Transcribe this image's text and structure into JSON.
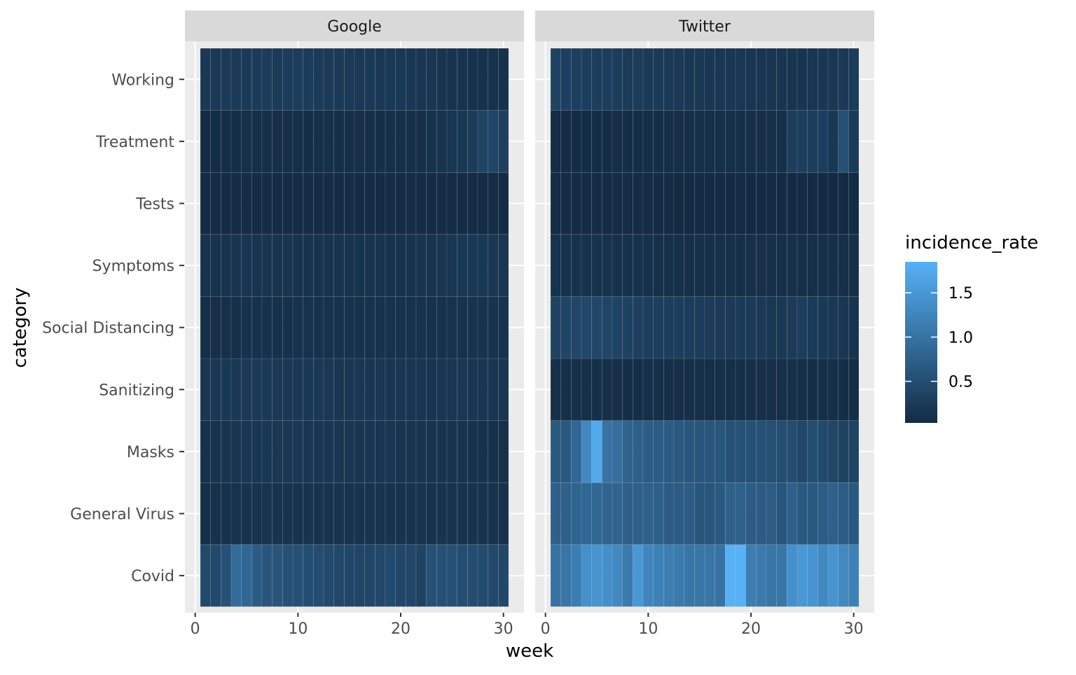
{
  "chart_data": {
    "type": "heatmap",
    "xlabel": "week",
    "ylabel": "category",
    "xlim": [
      0,
      31
    ],
    "x_ticks": [
      0,
      10,
      20,
      30
    ],
    "x_tick_labels": [
      "0",
      "10",
      "20",
      "30"
    ],
    "weeks": [
      1,
      2,
      3,
      4,
      5,
      6,
      7,
      8,
      9,
      10,
      11,
      12,
      13,
      14,
      15,
      16,
      17,
      18,
      19,
      20,
      21,
      22,
      23,
      24,
      25,
      26,
      27,
      28,
      29,
      30
    ],
    "categories": [
      "Covid",
      "General Virus",
      "Masks",
      "Sanitizing",
      "Social Distancing",
      "Symptoms",
      "Tests",
      "Treatment",
      "Working"
    ],
    "legend": {
      "title": "incidence_rate",
      "position": "right",
      "min": 0.03,
      "max": 1.85,
      "breaks": [
        0.5,
        1.0,
        1.5
      ],
      "break_labels": [
        "0.5",
        "1.0",
        "1.5"
      ],
      "color_low": "#132B43",
      "color_high": "#56B1F7"
    },
    "panels": [
      {
        "name": "Google",
        "values": {
          "Covid": [
            0.45,
            0.45,
            0.55,
            0.9,
            0.85,
            0.7,
            0.6,
            0.6,
            0.55,
            0.55,
            0.5,
            0.48,
            0.45,
            0.42,
            0.4,
            0.38,
            0.4,
            0.42,
            0.45,
            0.4,
            0.4,
            0.35,
            0.55,
            0.55,
            0.55,
            0.5,
            0.48,
            0.46,
            0.44,
            0.42
          ],
          "General Virus": [
            0.1,
            0.11,
            0.12,
            0.13,
            0.14,
            0.14,
            0.15,
            0.15,
            0.15,
            0.15,
            0.15,
            0.15,
            0.15,
            0.15,
            0.15,
            0.15,
            0.15,
            0.15,
            0.15,
            0.15,
            0.15,
            0.15,
            0.15,
            0.15,
            0.15,
            0.15,
            0.15,
            0.14,
            0.13,
            0.12
          ],
          "Masks": [
            0.12,
            0.14,
            0.16,
            0.17,
            0.18,
            0.19,
            0.2,
            0.2,
            0.2,
            0.2,
            0.19,
            0.19,
            0.18,
            0.18,
            0.18,
            0.17,
            0.17,
            0.17,
            0.17,
            0.16,
            0.16,
            0.16,
            0.16,
            0.15,
            0.15,
            0.14,
            0.13,
            0.12,
            0.11,
            0.1
          ],
          "Sanitizing": [
            0.18,
            0.19,
            0.2,
            0.21,
            0.22,
            0.23,
            0.22,
            0.22,
            0.21,
            0.21,
            0.2,
            0.2,
            0.2,
            0.19,
            0.19,
            0.19,
            0.18,
            0.18,
            0.18,
            0.18,
            0.17,
            0.17,
            0.17,
            0.17,
            0.18,
            0.18,
            0.17,
            0.17,
            0.17,
            0.17
          ],
          "Social Distancing": [
            0.08,
            0.09,
            0.1,
            0.1,
            0.11,
            0.11,
            0.11,
            0.11,
            0.11,
            0.12,
            0.12,
            0.12,
            0.12,
            0.12,
            0.12,
            0.12,
            0.12,
            0.12,
            0.12,
            0.12,
            0.12,
            0.12,
            0.12,
            0.12,
            0.13,
            0.13,
            0.14,
            0.14,
            0.14,
            0.14
          ],
          "Symptoms": [
            0.14,
            0.14,
            0.15,
            0.16,
            0.17,
            0.16,
            0.16,
            0.16,
            0.16,
            0.15,
            0.15,
            0.15,
            0.15,
            0.15,
            0.14,
            0.15,
            0.15,
            0.15,
            0.15,
            0.15,
            0.15,
            0.16,
            0.16,
            0.17,
            0.18,
            0.2,
            0.2,
            0.2,
            0.19,
            0.18
          ],
          "Tests": [
            0.05,
            0.05,
            0.05,
            0.05,
            0.05,
            0.05,
            0.05,
            0.05,
            0.05,
            0.05,
            0.05,
            0.05,
            0.05,
            0.05,
            0.05,
            0.05,
            0.05,
            0.05,
            0.05,
            0.05,
            0.05,
            0.05,
            0.05,
            0.05,
            0.05,
            0.05,
            0.05,
            0.05,
            0.05,
            0.05
          ],
          "Treatment": [
            0.05,
            0.06,
            0.07,
            0.07,
            0.08,
            0.08,
            0.09,
            0.09,
            0.09,
            0.09,
            0.09,
            0.09,
            0.09,
            0.09,
            0.09,
            0.09,
            0.09,
            0.09,
            0.09,
            0.09,
            0.1,
            0.1,
            0.12,
            0.15,
            0.18,
            0.2,
            0.25,
            0.35,
            0.38,
            0.32
          ],
          "Working": [
            0.22,
            0.22,
            0.24,
            0.25,
            0.24,
            0.25,
            0.26,
            0.25,
            0.26,
            0.27,
            0.26,
            0.25,
            0.24,
            0.24,
            0.23,
            0.22,
            0.22,
            0.21,
            0.2,
            0.2,
            0.19,
            0.18,
            0.18,
            0.16,
            0.15,
            0.14,
            0.13,
            0.12,
            0.12,
            0.12
          ]
        }
      },
      {
        "name": "Twitter",
        "values": {
          "Covid": [
            1.0,
            1.05,
            1.15,
            1.4,
            1.45,
            1.4,
            1.3,
            1.1,
            1.5,
            1.25,
            1.2,
            1.15,
            1.1,
            1.05,
            1.05,
            1.05,
            1.0,
            1.85,
            1.85,
            1.15,
            1.1,
            1.05,
            1.05,
            1.4,
            1.5,
            1.45,
            1.3,
            1.45,
            1.3,
            1.2
          ],
          "General Virus": [
            0.75,
            0.75,
            0.8,
            0.85,
            0.85,
            0.8,
            0.8,
            0.75,
            0.75,
            0.75,
            0.75,
            0.7,
            0.7,
            0.7,
            0.6,
            0.6,
            0.65,
            0.75,
            0.75,
            0.7,
            0.7,
            0.7,
            0.6,
            0.75,
            0.65,
            0.65,
            0.7,
            0.75,
            0.7,
            0.65
          ],
          "Masks": [
            0.65,
            0.65,
            0.85,
            1.3,
            1.75,
            1.0,
            0.95,
            0.8,
            0.75,
            0.7,
            0.7,
            0.68,
            0.65,
            0.62,
            0.6,
            0.6,
            0.6,
            0.55,
            0.55,
            0.55,
            0.55,
            0.52,
            0.5,
            0.5,
            0.4,
            0.5,
            0.45,
            0.4,
            0.35,
            0.35
          ],
          "Sanitizing": [
            0.1,
            0.1,
            0.1,
            0.1,
            0.1,
            0.1,
            0.09,
            0.09,
            0.09,
            0.09,
            0.09,
            0.09,
            0.08,
            0.08,
            0.08,
            0.08,
            0.08,
            0.08,
            0.08,
            0.08,
            0.08,
            0.08,
            0.08,
            0.08,
            0.08,
            0.08,
            0.08,
            0.08,
            0.07,
            0.07
          ],
          "Social Distancing": [
            0.35,
            0.38,
            0.4,
            0.42,
            0.4,
            0.38,
            0.36,
            0.34,
            0.32,
            0.3,
            0.3,
            0.28,
            0.28,
            0.26,
            0.26,
            0.25,
            0.24,
            0.24,
            0.24,
            0.23,
            0.22,
            0.2,
            0.2,
            0.25,
            0.28,
            0.25,
            0.22,
            0.2,
            0.18,
            0.16
          ],
          "Symptoms": [
            0.12,
            0.12,
            0.12,
            0.12,
            0.12,
            0.12,
            0.11,
            0.11,
            0.11,
            0.11,
            0.1,
            0.1,
            0.1,
            0.1,
            0.1,
            0.1,
            0.1,
            0.1,
            0.1,
            0.1,
            0.1,
            0.1,
            0.1,
            0.1,
            0.1,
            0.1,
            0.1,
            0.1,
            0.1,
            0.1
          ],
          "Tests": [
            0.05,
            0.05,
            0.05,
            0.05,
            0.05,
            0.05,
            0.05,
            0.05,
            0.05,
            0.05,
            0.05,
            0.05,
            0.04,
            0.04,
            0.04,
            0.04,
            0.04,
            0.04,
            0.04,
            0.04,
            0.04,
            0.04,
            0.04,
            0.04,
            0.04,
            0.04,
            0.04,
            0.04,
            0.04,
            0.04
          ],
          "Treatment": [
            0.05,
            0.05,
            0.05,
            0.06,
            0.06,
            0.06,
            0.07,
            0.07,
            0.07,
            0.07,
            0.07,
            0.08,
            0.08,
            0.08,
            0.08,
            0.09,
            0.09,
            0.09,
            0.09,
            0.09,
            0.09,
            0.1,
            0.1,
            0.28,
            0.28,
            0.28,
            0.28,
            0.2,
            0.55,
            0.25
          ],
          "Working": [
            0.35,
            0.32,
            0.3,
            0.3,
            0.28,
            0.28,
            0.26,
            0.25,
            0.25,
            0.24,
            0.23,
            0.22,
            0.22,
            0.2,
            0.2,
            0.19,
            0.18,
            0.18,
            0.18,
            0.17,
            0.17,
            0.17,
            0.17,
            0.16,
            0.16,
            0.17,
            0.18,
            0.2,
            0.22,
            0.25
          ]
        }
      }
    ]
  }
}
